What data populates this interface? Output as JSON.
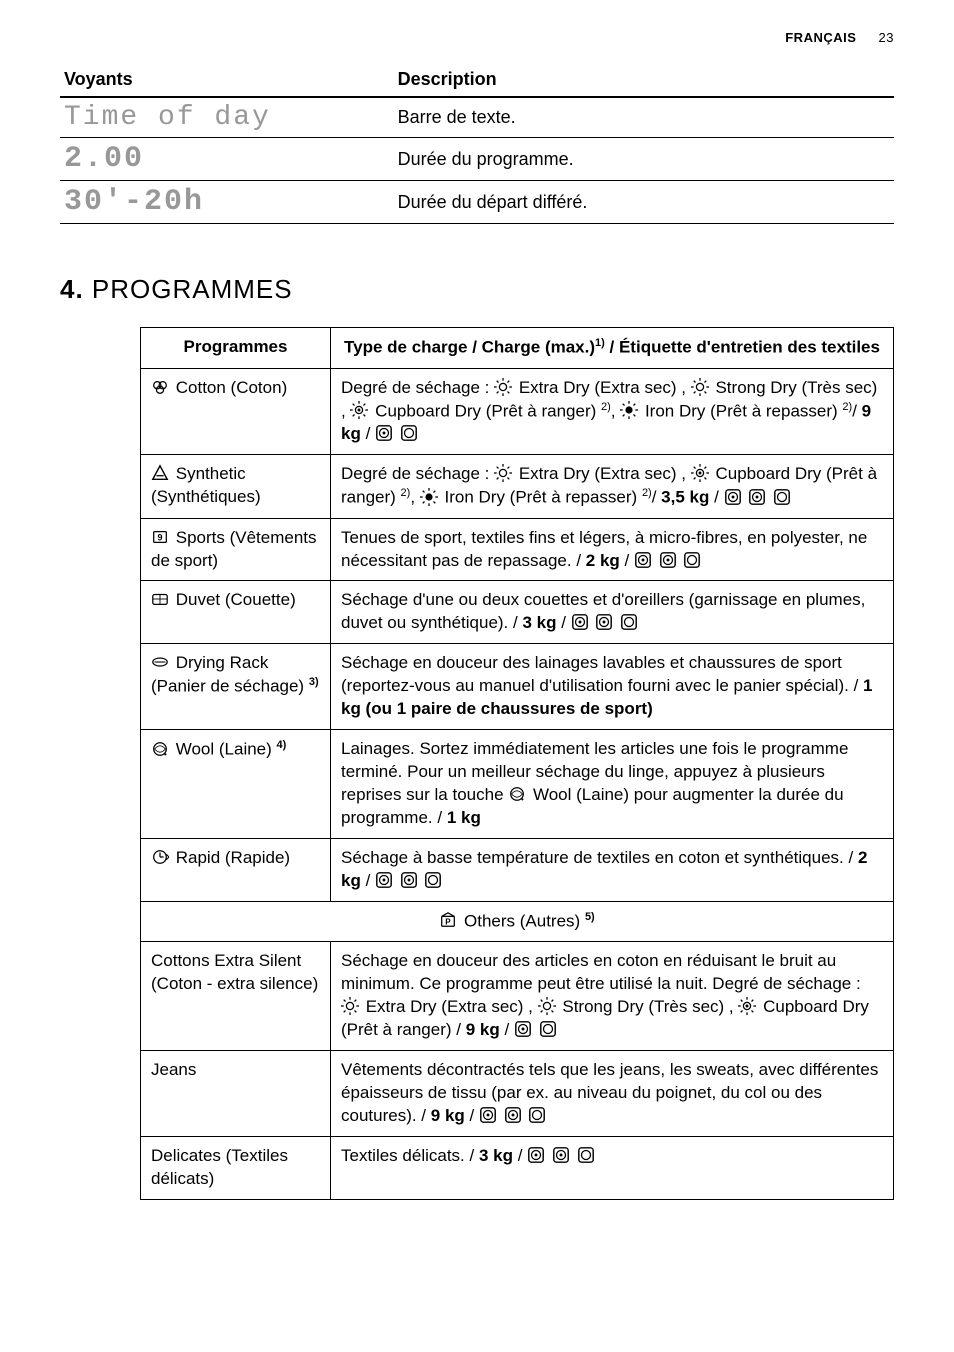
{
  "header": {
    "lang": "FRANÇAIS",
    "page": "23"
  },
  "voyants": {
    "col1": "Voyants",
    "col2": "Description",
    "rows": [
      {
        "lcd": "Time of day",
        "lcd_kind": "text",
        "desc": "Barre de texte."
      },
      {
        "lcd": "2.00",
        "lcd_kind": "seg",
        "desc": "Durée du programme."
      },
      {
        "lcd": "30'-20h",
        "lcd_kind": "seg",
        "desc": "Durée du départ différé."
      }
    ]
  },
  "section": {
    "number": "4.",
    "title": "PROGRAMMES"
  },
  "prog": {
    "header": {
      "colA": "Programmes",
      "colB_pre": "Type de charge / Charge (max.)",
      "colB_sup": "1)",
      "colB_post": " / Étiquette d'entretien des textiles"
    },
    "rows": [
      {
        "icon": "cotton",
        "name": "Cotton (Coton)",
        "desc_parts": [
          {
            "t": "Degré de séchage : "
          },
          {
            "icon": "sun-open"
          },
          {
            "t": " Extra Dry (Extra sec) , "
          },
          {
            "icon": "sun-open"
          },
          {
            "t": " Strong Dry (Très sec) , "
          },
          {
            "icon": "sun-dot"
          },
          {
            "t": " Cupboard Dry (Prêt à ranger) "
          },
          {
            "sup": "2)"
          },
          {
            "t": ", "
          },
          {
            "icon": "sun-fill"
          },
          {
            "t": " Iron Dry (Prêt à repasser) "
          },
          {
            "sup": "2)"
          },
          {
            "t": "/ ",
            "b": false
          },
          {
            "t": "9 kg",
            "b": true
          },
          {
            "t": " / "
          },
          {
            "icon": "care-dot"
          },
          {
            "t": " "
          },
          {
            "icon": "care-empty"
          }
        ]
      },
      {
        "icon": "synthetic",
        "name": "Synthetic (Synthétiques)",
        "desc_parts": [
          {
            "t": "Degré de séchage : "
          },
          {
            "icon": "sun-open"
          },
          {
            "t": " Extra Dry (Extra sec) , "
          },
          {
            "icon": "sun-dot"
          },
          {
            "t": " Cupboard Dry (Prêt à ranger) "
          },
          {
            "sup": "2)"
          },
          {
            "t": ", "
          },
          {
            "icon": "sun-fill"
          },
          {
            "t": " Iron Dry (Prêt à repasser) "
          },
          {
            "sup": "2)"
          },
          {
            "t": "/ "
          },
          {
            "t": "3,5 kg",
            "b": true
          },
          {
            "t": " / "
          },
          {
            "icon": "care-dot"
          },
          {
            "t": " "
          },
          {
            "icon": "care-dot"
          },
          {
            "t": " "
          },
          {
            "icon": "care-empty"
          }
        ]
      },
      {
        "icon": "sports",
        "name": "Sports (Vêtements de sport)",
        "desc_parts": [
          {
            "t": "Tenues de sport, textiles fins et légers, à micro-fibres, en polyester, ne nécessitant pas de repassage. / "
          },
          {
            "t": "2 kg",
            "b": true
          },
          {
            "t": " / "
          },
          {
            "icon": "care-dot"
          },
          {
            "t": " "
          },
          {
            "icon": "care-dot"
          },
          {
            "t": " "
          },
          {
            "icon": "care-empty"
          }
        ]
      },
      {
        "icon": "duvet",
        "name": "Duvet (Couette)",
        "desc_parts": [
          {
            "t": "Séchage d'une ou deux couettes et d'oreillers (garnissage en plumes, duvet ou synthétique). / "
          },
          {
            "t": "3 kg",
            "b": true
          },
          {
            "t": " / "
          },
          {
            "icon": "care-dot"
          },
          {
            "t": " "
          },
          {
            "icon": "care-dot"
          },
          {
            "t": " "
          },
          {
            "icon": "care-empty"
          }
        ]
      },
      {
        "icon": "rack",
        "name_parts": [
          {
            "t": "Drying Rack (Panier de séchage) "
          },
          {
            "sup": "3)",
            "b": true
          }
        ],
        "desc_parts": [
          {
            "t": "Séchage en douceur des lainages lavables et chaussures de sport (reportez-vous au manuel d'utilisation fourni avec le panier spécial). / "
          },
          {
            "t": "1 kg (ou 1 paire de chaussures de sport)",
            "b": true
          }
        ]
      },
      {
        "icon": "wool",
        "name_parts": [
          {
            "t": "Wool (Laine) "
          },
          {
            "sup": "4)",
            "b": true
          }
        ],
        "desc_parts": [
          {
            "t": "Lainages. Sortez immédiatement les articles une fois le programme terminé. Pour un meilleur séchage du linge, appuyez à plusieurs reprises sur la touche "
          },
          {
            "icon": "wool"
          },
          {
            "t": " Wool (Laine) pour augmenter la durée du programme. / "
          },
          {
            "t": "1 kg",
            "b": true
          }
        ]
      },
      {
        "icon": "rapid",
        "name": "Rapid (Rapide)",
        "desc_parts": [
          {
            "t": "Séchage à basse température de textiles en coton et synthétiques. / "
          },
          {
            "t": "2 kg",
            "b": true
          },
          {
            "t": " / "
          },
          {
            "icon": "care-dot"
          },
          {
            "t": " "
          },
          {
            "icon": "care-dot"
          },
          {
            "t": " "
          },
          {
            "icon": "care-empty"
          }
        ]
      },
      {
        "fullrow": true,
        "icon": "others",
        "center_parts": [
          {
            "t": "Others (Autres) "
          },
          {
            "sup": "5)",
            "b": true
          }
        ]
      },
      {
        "name": "Cottons Extra Silent (Coton - extra silence)",
        "desc_parts": [
          {
            "t": "Séchage en douceur des articles en coton en réduisant le bruit au minimum. Ce programme peut être utilisé la nuit. Degré de séchage : "
          },
          {
            "icon": "sun-open"
          },
          {
            "t": " Extra Dry (Extra sec) , "
          },
          {
            "icon": "sun-open"
          },
          {
            "t": " Strong Dry (Très sec) , "
          },
          {
            "icon": "sun-dot"
          },
          {
            "t": " Cupboard Dry (Prêt à ranger)  / "
          },
          {
            "t": "9 kg",
            "b": true
          },
          {
            "t": " / "
          },
          {
            "icon": "care-dot"
          },
          {
            "t": " "
          },
          {
            "icon": "care-empty"
          }
        ]
      },
      {
        "name": "Jeans",
        "desc_parts": [
          {
            "t": "Vêtements décontractés tels que les jeans, les sweats, avec différentes épaisseurs de tissu (par ex. au niveau du poignet, du col ou des coutures). / "
          },
          {
            "t": "9 kg",
            "b": true
          },
          {
            "t": " / "
          },
          {
            "icon": "care-dot"
          },
          {
            "t": " "
          },
          {
            "icon": "care-dot"
          },
          {
            "t": " "
          },
          {
            "icon": "care-empty"
          }
        ]
      },
      {
        "name": "Delicates (Textiles délicats)",
        "desc_parts": [
          {
            "t": "Textiles délicats. / "
          },
          {
            "t": "3 kg",
            "b": true
          },
          {
            "t": " / "
          },
          {
            "icon": "care-dot"
          },
          {
            "t": " "
          },
          {
            "icon": "care-dot"
          },
          {
            "t": " "
          },
          {
            "icon": "care-empty"
          }
        ]
      }
    ]
  },
  "style": {
    "lcd_color": "#989898",
    "border_color": "#000000",
    "font_family": "Arial, Helvetica, sans-serif"
  }
}
